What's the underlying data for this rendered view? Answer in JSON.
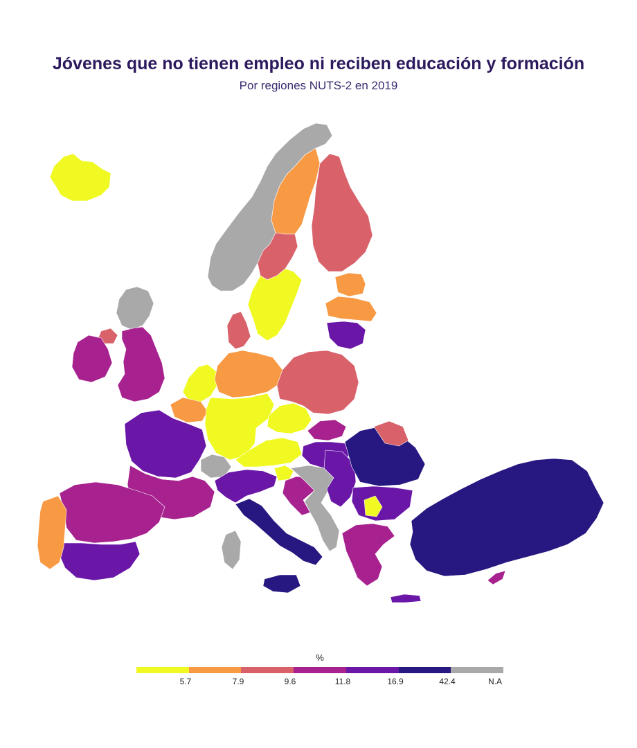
{
  "title": "Jóvenes que no tienen empleo ni reciben educación y formación",
  "subtitle": "Por regiones NUTS-2 en 2019",
  "legend": {
    "title": "%",
    "classes": [
      {
        "label": "5.7",
        "color": "#f0f921"
      },
      {
        "label": "7.9",
        "color": "#f89a44"
      },
      {
        "label": "9.6",
        "color": "#d8616a"
      },
      {
        "label": "11.8",
        "color": "#a7228f"
      },
      {
        "label": "16.9",
        "color": "#6a17a8"
      },
      {
        "label": "42.4",
        "color": "#261880"
      },
      {
        "label": "N.A",
        "color": "#a9a9a9"
      }
    ]
  },
  "regions": [
    {
      "name": "Iceland",
      "class": 0
    },
    {
      "name": "Norway",
      "class": 6
    },
    {
      "name": "Sweden north",
      "class": 1
    },
    {
      "name": "Sweden central",
      "class": 2
    },
    {
      "name": "Sweden south",
      "class": 0
    },
    {
      "name": "Finland",
      "class": 2
    },
    {
      "name": "Estonia",
      "class": 1
    },
    {
      "name": "Latvia",
      "class": 1
    },
    {
      "name": "Lithuania",
      "class": 4
    },
    {
      "name": "Scotland",
      "class": 6
    },
    {
      "name": "Northern Ireland",
      "class": 2
    },
    {
      "name": "England",
      "class": 3
    },
    {
      "name": "Ireland",
      "class": 3
    },
    {
      "name": "Denmark",
      "class": 2
    },
    {
      "name": "Netherlands",
      "class": 0
    },
    {
      "name": "Belgium",
      "class": 1
    },
    {
      "name": "Germany north",
      "class": 1
    },
    {
      "name": "Germany south",
      "class": 0
    },
    {
      "name": "Czechia",
      "class": 0
    },
    {
      "name": "Poland",
      "class": 2
    },
    {
      "name": "Slovakia",
      "class": 3
    },
    {
      "name": "Hungary",
      "class": 4
    },
    {
      "name": "Austria",
      "class": 0
    },
    {
      "name": "Switzerland",
      "class": 6
    },
    {
      "name": "France north",
      "class": 4
    },
    {
      "name": "France south",
      "class": 3
    },
    {
      "name": "Spain",
      "class": 3
    },
    {
      "name": "Andalusia",
      "class": 4
    },
    {
      "name": "Portugal",
      "class": 1
    },
    {
      "name": "Italy north",
      "class": 4
    },
    {
      "name": "Italy south",
      "class": 5
    },
    {
      "name": "Sardinia",
      "class": 6
    },
    {
      "name": "Sicily",
      "class": 5
    },
    {
      "name": "Slovenia",
      "class": 0
    },
    {
      "name": "Croatia",
      "class": 3
    },
    {
      "name": "Balkans",
      "class": 6
    },
    {
      "name": "Serbia",
      "class": 4
    },
    {
      "name": "Romania",
      "class": 5
    },
    {
      "name": "Moldova-area",
      "class": 2
    },
    {
      "name": "Bulgaria",
      "class": 4
    },
    {
      "name": "North Macedonia",
      "class": 0
    },
    {
      "name": "Greece",
      "class": 3
    },
    {
      "name": "Crete",
      "class": 4
    },
    {
      "name": "Turkey",
      "class": 5
    },
    {
      "name": "Cyprus",
      "class": 3
    }
  ]
}
